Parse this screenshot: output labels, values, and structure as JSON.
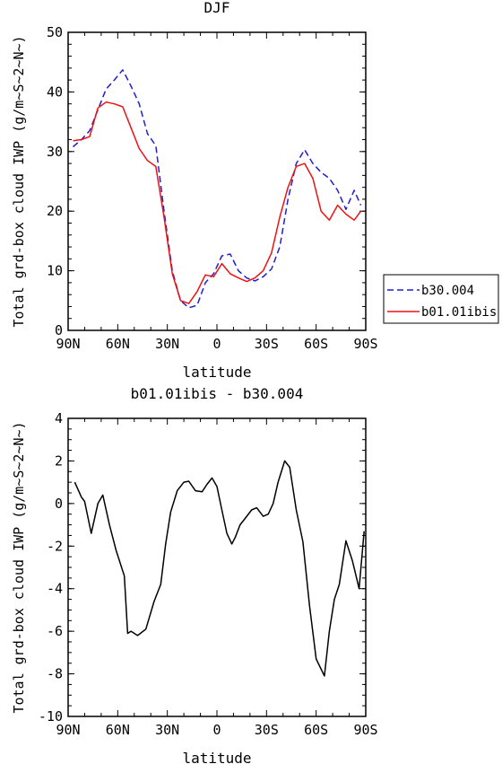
{
  "chart_data": [
    {
      "type": "line",
      "title": "DJF",
      "xlabel": "latitude",
      "ylabel": "Total grd-box cloud IWP (g/m~S~2~N~)",
      "x_ticks": [
        "90N",
        "60N",
        "30N",
        "0",
        "30S",
        "60S",
        "90S"
      ],
      "y_ticks": [
        "0",
        "10",
        "20",
        "30",
        "40",
        "50"
      ],
      "xlim": [
        90,
        -90
      ],
      "ylim": [
        0,
        50
      ],
      "legend_position": "right",
      "series": [
        {
          "name": "b30.004",
          "color": "#1f1fd0",
          "dash": "dashed",
          "x": [
            87,
            82,
            77,
            72,
            67,
            62,
            57,
            52,
            47,
            42,
            37,
            32,
            27,
            22,
            17,
            12,
            7,
            2,
            -3,
            -8,
            -13,
            -18,
            -23,
            -28,
            -33,
            -38,
            -43,
            -48,
            -53,
            -58,
            -63,
            -68,
            -73,
            -78,
            -83,
            -87
          ],
          "values": [
            30.8,
            32.0,
            33.5,
            37.0,
            40.5,
            42.0,
            43.7,
            41.0,
            38.0,
            33.0,
            31.0,
            20.0,
            10.0,
            5.0,
            3.8,
            4.2,
            8.0,
            9.5,
            12.5,
            12.8,
            10.0,
            8.8,
            8.3,
            9.0,
            10.3,
            14.0,
            22.0,
            28.0,
            30.3,
            28.0,
            26.5,
            25.5,
            23.5,
            20.3,
            23.5,
            21.0
          ]
        },
        {
          "name": "b01.01ibis",
          "color": "#ee1111",
          "dash": "solid",
          "x": [
            87,
            82,
            77,
            72,
            67,
            62,
            57,
            52,
            47,
            42,
            37,
            32,
            27,
            22,
            17,
            12,
            7,
            2,
            -3,
            -8,
            -13,
            -18,
            -23,
            -28,
            -33,
            -38,
            -43,
            -48,
            -53,
            -58,
            -63,
            -68,
            -73,
            -78,
            -83,
            -87
          ],
          "values": [
            31.8,
            32.0,
            32.5,
            37.3,
            38.3,
            38.0,
            37.5,
            34.0,
            30.5,
            28.5,
            27.5,
            19.0,
            9.5,
            5.0,
            4.5,
            6.5,
            9.3,
            9.0,
            11.2,
            9.5,
            8.8,
            8.2,
            8.8,
            10.0,
            13.0,
            19.0,
            24.0,
            27.5,
            28.0,
            25.5,
            20.0,
            18.5,
            21.0,
            19.5,
            18.5,
            20.0
          ]
        }
      ]
    },
    {
      "type": "line",
      "title": "b01.01ibis - b30.004",
      "xlabel": "latitude",
      "ylabel": "Total grd-box cloud IWP (g/m~S~2~N~)",
      "x_ticks": [
        "90N",
        "60N",
        "30N",
        "0",
        "30S",
        "60S",
        "90S"
      ],
      "y_ticks": [
        "-10",
        "-8",
        "-6",
        "-4",
        "-2",
        "0",
        "2",
        "4"
      ],
      "xlim": [
        90,
        -90
      ],
      "ylim": [
        -10,
        4
      ],
      "series": [
        {
          "color": "#000000",
          "dash": "solid",
          "x": [
            86,
            82,
            80,
            76,
            72,
            69,
            65,
            61,
            56,
            54,
            52,
            48,
            43,
            38,
            34,
            31,
            28,
            24,
            20,
            17,
            13,
            9,
            6,
            3,
            0,
            -3,
            -6,
            -9,
            -11,
            -14,
            -17,
            -21,
            -24,
            -28,
            -31,
            -34,
            -37,
            -41,
            -44,
            -48,
            -52,
            -56,
            -60,
            -65,
            -68,
            -71,
            -74,
            -78,
            -82,
            -86,
            -89
          ],
          "values": [
            1.0,
            0.3,
            0.1,
            -1.4,
            0.0,
            0.4,
            -1.0,
            -2.2,
            -3.4,
            -6.1,
            -6.0,
            -6.2,
            -5.9,
            -4.6,
            -3.8,
            -1.9,
            -0.4,
            0.6,
            1.0,
            1.05,
            0.6,
            0.55,
            0.9,
            1.2,
            0.8,
            -0.3,
            -1.4,
            -1.9,
            -1.6,
            -1.0,
            -0.7,
            -0.3,
            -0.2,
            -0.6,
            -0.5,
            0.0,
            1.0,
            2.0,
            1.7,
            -0.3,
            -1.8,
            -4.8,
            -7.3,
            -8.1,
            -6.0,
            -4.5,
            -3.8,
            -1.75,
            -2.7,
            -4.0,
            -1.3
          ]
        }
      ]
    }
  ]
}
